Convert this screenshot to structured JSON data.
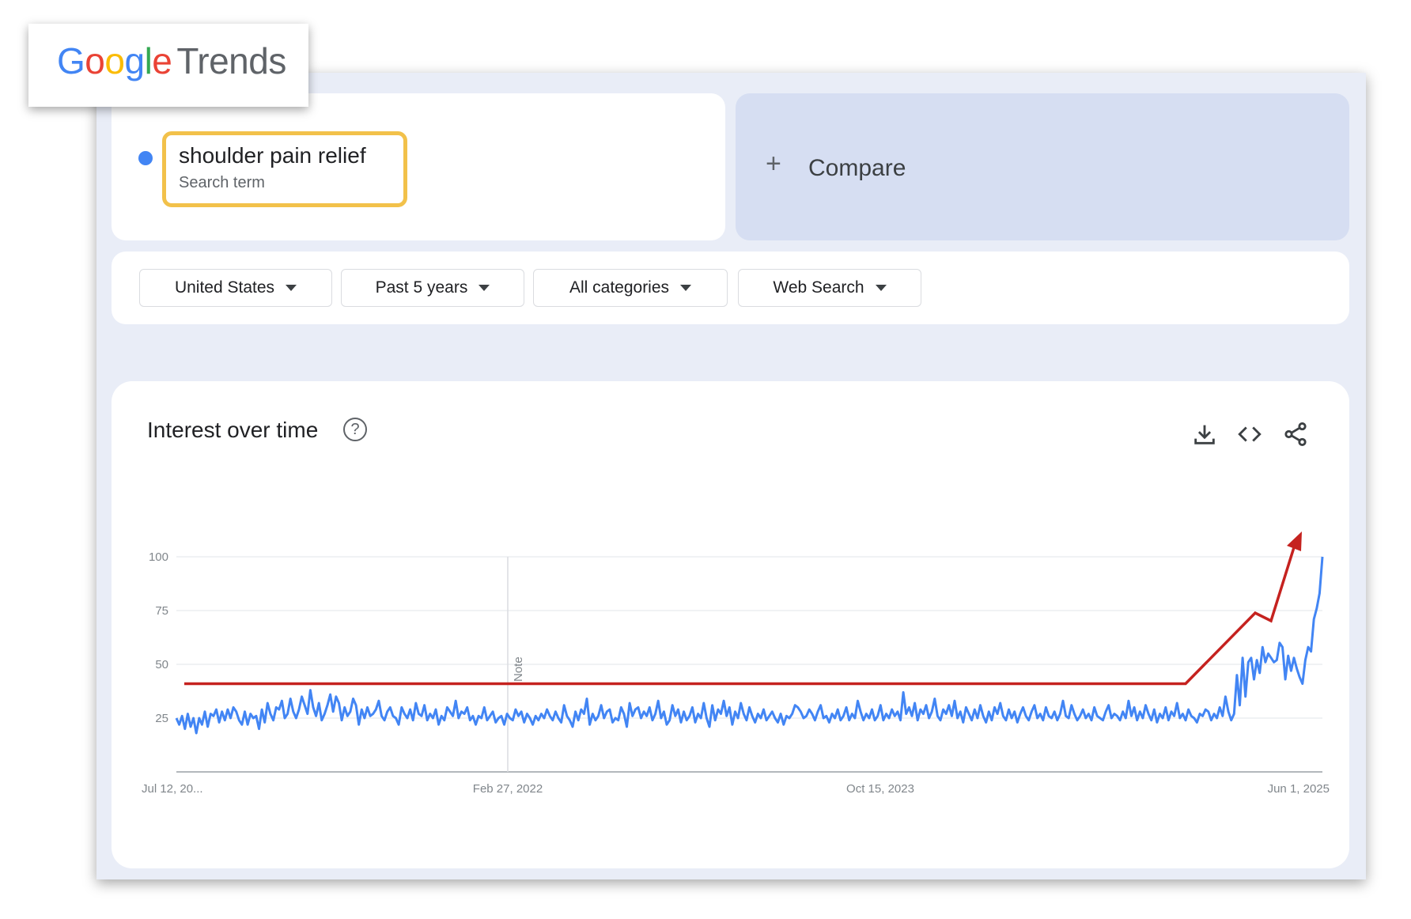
{
  "logo": {
    "google": "Google",
    "product": "Trends"
  },
  "search_term": {
    "name": "shoulder pain relief",
    "subtitle": "Search term",
    "color": "#4285f4"
  },
  "compare": {
    "label": "Compare"
  },
  "filters": [
    {
      "label": "United States"
    },
    {
      "label": "Past 5 years"
    },
    {
      "label": "All categories"
    },
    {
      "label": "Web Search"
    }
  ],
  "chart_card": {
    "title": "Interest over time"
  },
  "icons": {
    "help": "help-circle-icon",
    "download": "download-icon",
    "embed": "embed-code-icon",
    "share": "share-icon"
  },
  "chart_data": {
    "type": "line",
    "ylim": [
      0,
      100
    ],
    "yticks": [
      25,
      50,
      75,
      100
    ],
    "x_tick_labels": [
      "Jul 12, 20...",
      "Feb 27, 2022",
      "Oct 15, 2023",
      "Jun 1, 2025"
    ],
    "note_label": "Note",
    "grid": true,
    "series": [
      {
        "color": "#4285f4",
        "values": [
          25,
          22,
          26,
          20,
          27,
          21,
          25,
          18,
          25,
          22,
          28,
          21,
          27,
          26,
          29,
          23,
          28,
          24,
          29,
          25,
          30,
          28,
          24,
          22,
          28,
          22,
          27,
          25,
          26,
          20,
          29,
          23,
          32,
          27,
          24,
          30,
          29,
          33,
          25,
          27,
          34,
          28,
          25,
          29,
          35,
          31,
          27,
          38,
          30,
          26,
          32,
          24,
          27,
          31,
          36,
          28,
          35,
          32,
          24,
          30,
          26,
          28,
          34,
          31,
          22,
          29,
          25,
          30,
          26,
          27,
          29,
          33,
          26,
          24,
          28,
          30,
          26,
          25,
          22,
          30,
          27,
          25,
          29,
          24,
          32,
          27,
          26,
          31,
          24,
          27,
          25,
          29,
          22,
          26,
          24,
          30,
          28,
          26,
          33,
          25,
          28,
          27,
          30,
          24,
          26,
          22,
          26,
          25,
          30,
          24,
          26,
          28,
          23,
          25,
          26,
          22,
          27,
          25,
          24,
          29,
          26,
          28,
          23,
          27,
          25,
          22,
          26,
          24,
          27,
          25,
          29,
          26,
          24,
          28,
          25,
          23,
          31,
          26,
          24,
          21,
          28,
          24,
          29,
          27,
          34,
          22,
          27,
          24,
          26,
          31,
          25,
          28,
          29,
          23,
          25,
          24,
          30,
          27,
          21,
          32,
          26,
          29,
          30,
          25,
          28,
          26,
          30,
          24,
          27,
          33,
          25,
          28,
          22,
          24,
          31,
          26,
          29,
          23,
          28,
          24,
          26,
          30,
          23,
          27,
          25,
          32,
          25,
          21,
          31,
          24,
          29,
          27,
          33,
          26,
          30,
          22,
          28,
          25,
          32,
          27,
          24,
          30,
          26,
          23,
          27,
          25,
          29,
          24,
          26,
          28,
          25,
          23,
          27,
          22,
          26,
          25,
          27,
          31,
          30,
          28,
          25,
          26,
          29,
          27,
          24,
          28,
          31,
          25,
          26,
          23,
          27,
          25,
          29,
          24,
          26,
          30,
          24,
          27,
          25,
          33,
          28,
          24,
          27,
          25,
          29,
          24,
          26,
          31,
          24,
          27,
          25,
          29,
          26,
          28,
          24,
          37,
          27,
          30,
          26,
          32,
          24,
          29,
          27,
          31,
          25,
          28,
          34,
          26,
          24,
          29,
          27,
          31,
          26,
          33,
          25,
          28,
          23,
          30,
          27,
          24,
          29,
          25,
          31,
          26,
          23,
          28,
          24,
          30,
          27,
          32,
          26,
          24,
          29,
          25,
          28,
          23,
          27,
          30,
          26,
          24,
          28,
          31,
          25,
          27,
          24,
          30,
          26,
          25,
          28,
          24,
          27,
          33,
          26,
          25,
          31,
          27,
          24,
          26,
          29,
          25,
          27,
          24,
          30,
          26,
          25,
          24,
          28,
          31,
          25,
          27,
          26,
          24,
          28,
          25,
          33,
          26,
          30,
          24,
          28,
          25,
          31,
          27,
          24,
          29,
          23,
          27,
          25,
          30,
          24,
          28,
          26,
          32,
          25,
          27,
          24,
          29,
          26,
          25,
          23,
          27,
          26,
          29,
          28,
          24,
          27,
          25,
          30,
          26,
          35,
          28,
          24,
          27,
          45,
          31,
          53,
          35,
          51,
          53,
          43,
          52,
          46,
          58,
          51,
          55,
          53,
          51,
          52,
          60,
          58,
          43,
          54,
          47,
          53,
          48,
          44,
          41,
          52,
          58,
          56,
          71,
          76,
          83,
          100
        ]
      }
    ],
    "annotation": {
      "type": "trend-arrow",
      "color": "#c5221f",
      "baseline_value": 41
    }
  }
}
